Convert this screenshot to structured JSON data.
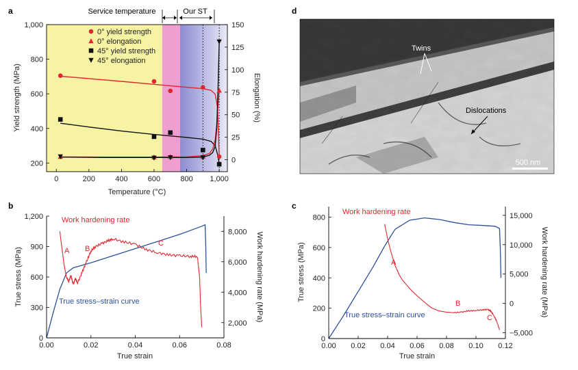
{
  "colors": {
    "red": "#e0262e",
    "blue": "#2c4f9a",
    "black": "#111111",
    "orange": "#e8742a",
    "service_yellow": "#f7f3a4",
    "service_pink": "#ef9fcf",
    "st_start": "#8c8cd2",
    "st_end": "#eaeaf6"
  },
  "chart_data": [
    {
      "panel": "a",
      "type": "scatter",
      "header": {
        "service_label": "Service temperature",
        "st_label": "Our ST"
      },
      "regions": [
        {
          "name": "service-temperature-yellow",
          "x_range": [
            -60,
            650
          ]
        },
        {
          "name": "service-temperature-pink",
          "x_range": [
            650,
            760
          ]
        },
        {
          "name": "our-st",
          "x_range": [
            760,
            1050
          ]
        }
      ],
      "vlines": [
        900,
        1000
      ],
      "xlabel": "Temperature (°C)",
      "ylabel": "Yield strength (MPa)",
      "y2label": "Elongation (%)",
      "xlim": [
        -60,
        1050
      ],
      "ylim": [
        150,
        1000
      ],
      "y2lim": [
        -13.2,
        150
      ],
      "xticks": [
        0,
        200,
        400,
        600,
        800,
        1000
      ],
      "xtick_labels": [
        "0",
        "200",
        "400",
        "600",
        "800",
        "1,000"
      ],
      "yticks": [
        200,
        400,
        600,
        800,
        1000
      ],
      "ytick_labels": [
        "200",
        "400",
        "600",
        "800",
        "1,000"
      ],
      "y2ticks": [
        0,
        25,
        50,
        75,
        100,
        125,
        150
      ],
      "y2tick_labels": [
        "0",
        "25",
        "50",
        "75",
        "100",
        "125",
        "150"
      ],
      "legend": [
        {
          "label": "0° yield strength",
          "marker": "circle",
          "color": "#e0262e"
        },
        {
          "label": "0° elongation",
          "marker": "triangle-up",
          "color": "#e0262e"
        },
        {
          "label": "45° yield strength",
          "marker": "square",
          "color": "#111111"
        },
        {
          "label": "45° elongation",
          "marker": "triangle-down",
          "color": "#111111"
        }
      ],
      "series": [
        {
          "name": "0° yield strength",
          "axis": "left",
          "marker": "circle",
          "color": "#e0262e",
          "x": [
            25,
            600,
            700,
            900,
            1000
          ],
          "y": [
            705,
            672,
            617,
            637,
            237
          ]
        },
        {
          "name": "0° elongation",
          "axis": "right",
          "marker": "triangle-up",
          "color": "#e0262e",
          "x": [
            25,
            600,
            700,
            900,
            1000
          ],
          "y": [
            3.5,
            3,
            3.5,
            3.5,
            77
          ]
        },
        {
          "name": "45° yield strength",
          "axis": "left",
          "marker": "square",
          "color": "#111111",
          "x": [
            25,
            600,
            700,
            900,
            1000
          ],
          "y": [
            452,
            352,
            376,
            275,
            193
          ]
        },
        {
          "name": "45° elongation",
          "axis": "right",
          "marker": "triangle-down",
          "color": "#111111",
          "x": [
            25,
            600,
            700,
            900,
            1000
          ],
          "y": [
            3.5,
            2,
            2.5,
            2.5,
            131
          ]
        }
      ],
      "fit_lines": [
        {
          "name": "0-yield-fit",
          "axis": "left",
          "color": "#e0262e",
          "x": [
            25,
            200,
            400,
            600,
            800,
            900,
            950,
            975,
            990,
            1000
          ],
          "y": [
            702,
            688,
            672,
            655,
            638,
            630,
            620,
            598,
            520,
            235
          ]
        },
        {
          "name": "45-yield-fit",
          "axis": "left",
          "color": "#111111",
          "x": [
            25,
            200,
            400,
            600,
            800,
            900,
            950,
            975,
            990,
            1000
          ],
          "y": [
            430,
            408,
            385,
            365,
            348,
            338,
            325,
            300,
            250,
            196
          ]
        },
        {
          "name": "0-elong-fit",
          "axis": "right",
          "color": "#e0262e",
          "x": [
            25,
            300,
            600,
            800,
            900,
            940,
            960,
            975,
            985,
            993,
            1000
          ],
          "y": [
            3.2,
            3,
            3,
            3.2,
            4.5,
            7,
            12,
            22,
            40,
            60,
            77
          ]
        },
        {
          "name": "45-elong-fit",
          "axis": "right",
          "color": "#111111",
          "x": [
            25,
            300,
            600,
            800,
            900,
            940,
            960,
            975,
            985,
            993,
            1000
          ],
          "y": [
            3,
            2.5,
            2.5,
            2.5,
            3,
            5,
            8,
            15,
            35,
            80,
            131
          ]
        }
      ]
    },
    {
      "panel": "b",
      "type": "line",
      "xlabel": "True strain",
      "ylabel": "True stress (MPa)",
      "y2label": "Work hardening rate (MPa)",
      "xlim": [
        0,
        0.08
      ],
      "ylim": [
        0,
        1200
      ],
      "y2lim": [
        1000,
        9000
      ],
      "xticks": [
        0,
        0.02,
        0.04,
        0.06,
        0.08
      ],
      "xtick_labels": [
        "0.00",
        "0.02",
        "0.04",
        "0.06",
        "0.08"
      ],
      "yticks": [
        0,
        300,
        600,
        900,
        1200
      ],
      "ytick_labels": [
        "0",
        "300",
        "600",
        "900",
        "1,200"
      ],
      "y2ticks": [
        2000,
        4000,
        6000,
        8000
      ],
      "y2tick_labels": [
        "2,000",
        "4,000",
        "6,000",
        "8,000"
      ],
      "series": [
        {
          "name": "True stress–strain curve",
          "axis": "left",
          "color": "#2c4f9a",
          "x": [
            0,
            0.003,
            0.006,
            0.009,
            0.012,
            0.02,
            0.03,
            0.04,
            0.05,
            0.06,
            0.065,
            0.07,
            0.0715,
            0.0718,
            0.072
          ],
          "y": [
            0,
            250,
            480,
            640,
            690,
            740,
            810,
            880,
            950,
            1020,
            1060,
            1100,
            1115,
            900,
            640
          ]
        },
        {
          "name": "Work hardening rate",
          "axis": "right",
          "color": "#e0262e",
          "x": [
            0.006,
            0.007,
            0.008,
            0.009,
            0.01,
            0.011,
            0.012,
            0.013,
            0.014,
            0.016,
            0.018,
            0.02,
            0.022,
            0.025,
            0.028,
            0.03,
            0.035,
            0.04,
            0.045,
            0.05,
            0.055,
            0.06,
            0.065,
            0.068,
            0.069,
            0.0695,
            0.07
          ],
          "y": [
            8000,
            6800,
            5700,
            5000,
            4700,
            5100,
            4500,
            4900,
            4600,
            5300,
            6000,
            6700,
            7000,
            7200,
            7400,
            7500,
            7300,
            7150,
            6800,
            6600,
            6450,
            6400,
            6350,
            6350,
            5000,
            3000,
            1700
          ]
        }
      ],
      "annotations": [
        {
          "text": "Work hardening rate",
          "color": "#e0262e"
        },
        {
          "text": "A",
          "color": "#e0262e"
        },
        {
          "text": "B",
          "color": "#e0262e"
        },
        {
          "text": "C",
          "color": "#e0262e"
        },
        {
          "text": "True stress–strain curve",
          "color": "#2c4f9a"
        }
      ]
    },
    {
      "panel": "c",
      "type": "line",
      "xlabel": "True strain",
      "ylabel": "True stress (MPa)",
      "y2label": "Work hardening rate (MPa)",
      "xlim": [
        0,
        0.12
      ],
      "ylim": [
        0,
        870
      ],
      "y2lim": [
        -6000,
        16500
      ],
      "xticks": [
        0,
        0.02,
        0.04,
        0.06,
        0.08,
        0.1,
        0.12
      ],
      "xtick_labels": [
        "0.00",
        "0.02",
        "0.04",
        "0.06",
        "0.08",
        "0.10",
        "0.12"
      ],
      "yticks": [
        0,
        200,
        400,
        600,
        800
      ],
      "ytick_labels": [
        "0",
        "200",
        "400",
        "600",
        "800"
      ],
      "y2ticks": [
        -5000,
        0,
        5000,
        10000,
        15000
      ],
      "y2tick_labels": [
        "−5,000",
        "0",
        "5,000",
        "10,000",
        "15,000"
      ],
      "series": [
        {
          "name": "True stress–strain curve",
          "axis": "left",
          "color": "#2c4f9a",
          "x": [
            0,
            0.01,
            0.02,
            0.03,
            0.038,
            0.045,
            0.055,
            0.065,
            0.075,
            0.085,
            0.095,
            0.105,
            0.113,
            0.116,
            0.1165,
            0.117
          ],
          "y": [
            0,
            150,
            310,
            470,
            610,
            720,
            780,
            795,
            785,
            765,
            750,
            745,
            740,
            725,
            600,
            400
          ]
        },
        {
          "name": "Work hardening rate",
          "axis": "right",
          "color": "#e0262e",
          "x": [
            0.038,
            0.04,
            0.042,
            0.045,
            0.048,
            0.05,
            0.055,
            0.06,
            0.065,
            0.07,
            0.075,
            0.08,
            0.085,
            0.09,
            0.095,
            0.1,
            0.105,
            0.108,
            0.11,
            0.112,
            0.114,
            0.116
          ],
          "y": [
            13500,
            11000,
            9000,
            6500,
            4800,
            4000,
            2500,
            1300,
            200,
            -800,
            -1300,
            -1500,
            -1600,
            -1500,
            -1300,
            -1200,
            -1100,
            -1050,
            -1300,
            -2000,
            -3000,
            -4500
          ]
        }
      ],
      "annotations": [
        {
          "text": "Work hardening rate",
          "color": "#e0262e"
        },
        {
          "text": "A",
          "color": "#e0262e"
        },
        {
          "text": "B",
          "color": "#e0262e"
        },
        {
          "text": "C",
          "color": "#e0262e"
        },
        {
          "text": "True stress–strain curve",
          "color": "#2c4f9a"
        }
      ]
    },
    {
      "panel": "d",
      "type": "image",
      "description_labels": [
        "Twins",
        "Dislocations"
      ],
      "scale_bar": "500 nm"
    }
  ]
}
